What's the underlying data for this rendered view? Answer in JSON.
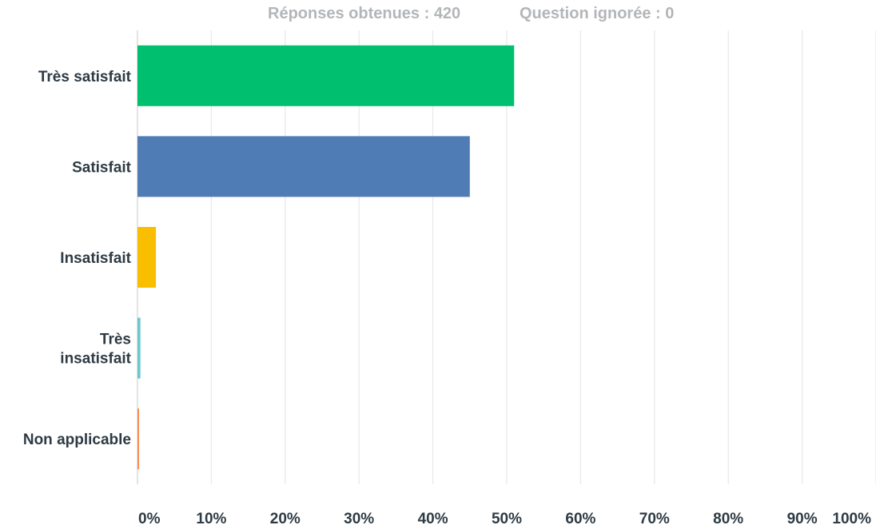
{
  "header": {
    "responses": "Réponses obtenues : 420",
    "skipped": "Question ignorée : 0"
  },
  "chart_data": {
    "type": "bar",
    "orientation": "horizontal",
    "categories": [
      [
        "Très satisfait"
      ],
      [
        "Satisfait"
      ],
      [
        "Insatisfait"
      ],
      [
        "Très",
        "insatisfait"
      ],
      [
        "Non applicable"
      ]
    ],
    "values": [
      51.0,
      45.0,
      2.5,
      0.4,
      0.2
    ],
    "colors": [
      "#00bf6f",
      "#507cb6",
      "#f9be00",
      "#6bc8cd",
      "#ff8b4f"
    ],
    "xlim": [
      0,
      100
    ],
    "xticks": [
      0,
      10,
      20,
      30,
      40,
      50,
      60,
      70,
      80,
      90,
      100
    ],
    "tick_labels": [
      "0%",
      "10%",
      "20%",
      "30%",
      "40%",
      "50%",
      "60%",
      "70%",
      "80%",
      "90%",
      "100%"
    ],
    "grid": true
  }
}
